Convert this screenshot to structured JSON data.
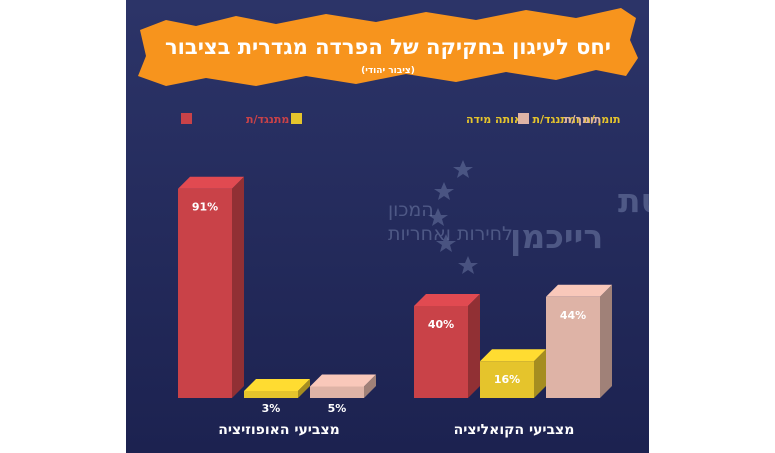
{
  "colors": {
    "background_top": "#2c3468",
    "background_bottom": "#1c2250",
    "banner": "#f7941d",
    "oppose": "#c94248",
    "neutral": "#e5c42c",
    "support": "#deb3a6"
  },
  "watermark": {
    "line1": "אוניברסיטת",
    "line2": "רייכמן",
    "line3": "המכון",
    "line4": "לחירות ואחריות"
  },
  "chart_data": {
    "type": "bar",
    "title": "יחס לעיגון בחקיקה של הפרדה מגדרית בציבור",
    "subtitle": "(ציבור יהודי)",
    "unit": "%",
    "categories": [
      "מצביעי האופוזיציה",
      "מצביעי הקואליציה"
    ],
    "series": [
      {
        "name": "מתנגד/ת",
        "values": [
          91,
          40
        ],
        "labels": [
          "91%",
          "40%"
        ]
      },
      {
        "name": "תומך/ת ומתנגד/ת באותה מידה",
        "values": [
          3,
          16
        ],
        "labels": [
          "3%",
          "16%"
        ]
      },
      {
        "name": "תומך/ת",
        "values": [
          5,
          44
        ],
        "labels": [
          "5%",
          "44%"
        ]
      }
    ],
    "ylim": [
      0,
      100
    ],
    "legend_position": "top",
    "grid": false
  }
}
